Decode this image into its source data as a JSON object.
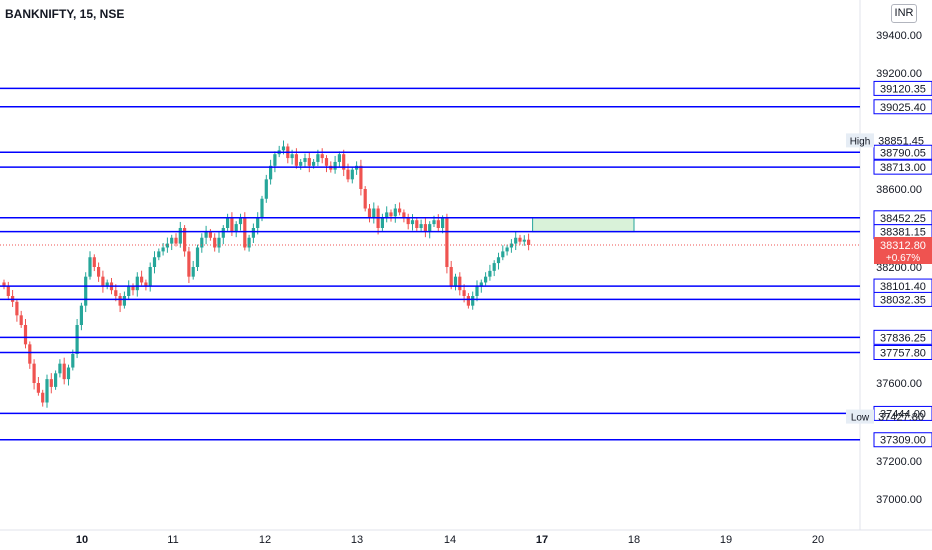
{
  "header": {
    "symbol": "BANKNIFTY, 15, NSE",
    "currency": "INR"
  },
  "colors": {
    "up": "#26a69a",
    "down": "#ef5350",
    "level": "#0000ff",
    "zone_fill": "#d9f2d9",
    "zone_border": "#26a69a",
    "last_price": "#ef5350"
  },
  "chart_data": {
    "type": "candlestick",
    "title": "BANKNIFTY, 15, NSE",
    "x_ticks": [
      {
        "label": "10",
        "bold": true
      },
      {
        "label": "11"
      },
      {
        "label": "12"
      },
      {
        "label": "13"
      },
      {
        "label": "14"
      },
      {
        "label": "17",
        "bold": true
      },
      {
        "label": "18"
      },
      {
        "label": "19"
      },
      {
        "label": "20"
      }
    ],
    "y_ticks": [
      "39400.00",
      "39200.00",
      "38600.00",
      "38200.00",
      "37600.00",
      "37200.00",
      "37000.00"
    ],
    "y_range": [
      36900,
      39500
    ],
    "levels": [
      {
        "label": "39120.35",
        "value": 39120.35
      },
      {
        "label": "39025.40",
        "value": 39025.4
      },
      {
        "label": "38790.05",
        "value": 38790.05
      },
      {
        "label": "38713.00",
        "value": 38713.0
      },
      {
        "label": "38452.25",
        "value": 38452.25
      },
      {
        "label": "38381.15",
        "value": 38381.15
      },
      {
        "label": "38101.40",
        "value": 38101.4
      },
      {
        "label": "38032.35",
        "value": 38032.35
      },
      {
        "label": "37836.25",
        "value": 37836.25
      },
      {
        "label": "37757.80",
        "value": 37757.8
      },
      {
        "label": "37444.00",
        "value": 37444.0
      },
      {
        "label": "37309.00",
        "value": 37309.0
      }
    ],
    "high": {
      "label": "High",
      "value": "38851.45",
      "num": 38851.45
    },
    "low": {
      "label": "Low",
      "value": "37427.80",
      "num": 37427.8
    },
    "last": {
      "price": "38312.80",
      "change": "+0.67%",
      "num": 38312.8
    },
    "zone": {
      "top": 38452.25,
      "bottom": 38381.15
    },
    "closes": [
      38100,
      38050,
      38020,
      37950,
      37900,
      37800,
      37700,
      37600,
      37550,
      37500,
      37620,
      37580,
      37650,
      37700,
      37620,
      37680,
      37750,
      37900,
      38000,
      38150,
      38250,
      38200,
      38150,
      38100,
      38120,
      38080,
      38050,
      38000,
      38050,
      38100,
      38080,
      38150,
      38120,
      38100,
      38200,
      38250,
      38280,
      38300,
      38320,
      38350,
      38320,
      38400,
      38280,
      38150,
      38200,
      38300,
      38350,
      38380,
      38350,
      38300,
      38350,
      38400,
      38450,
      38380,
      38420,
      38450,
      38300,
      38350,
      38400,
      38450,
      38550,
      38650,
      38720,
      38780,
      38800,
      38820,
      38760,
      38780,
      38720,
      38740,
      38760,
      38720,
      38740,
      38780,
      38760,
      38720,
      38700,
      38740,
      38780,
      38700,
      38650,
      38700,
      38720,
      38600,
      38500,
      38450,
      38500,
      38400,
      38450,
      38480,
      38460,
      38500,
      38480,
      38450,
      38420,
      38440,
      38400,
      38420,
      38380,
      38420,
      38440,
      38400,
      38450,
      38200,
      38100,
      38150,
      38080,
      38050,
      38000,
      38050,
      38100,
      38120,
      38150,
      38180,
      38220,
      38250,
      38280,
      38300,
      38320,
      38350,
      38330,
      38340,
      38312.8
    ]
  }
}
